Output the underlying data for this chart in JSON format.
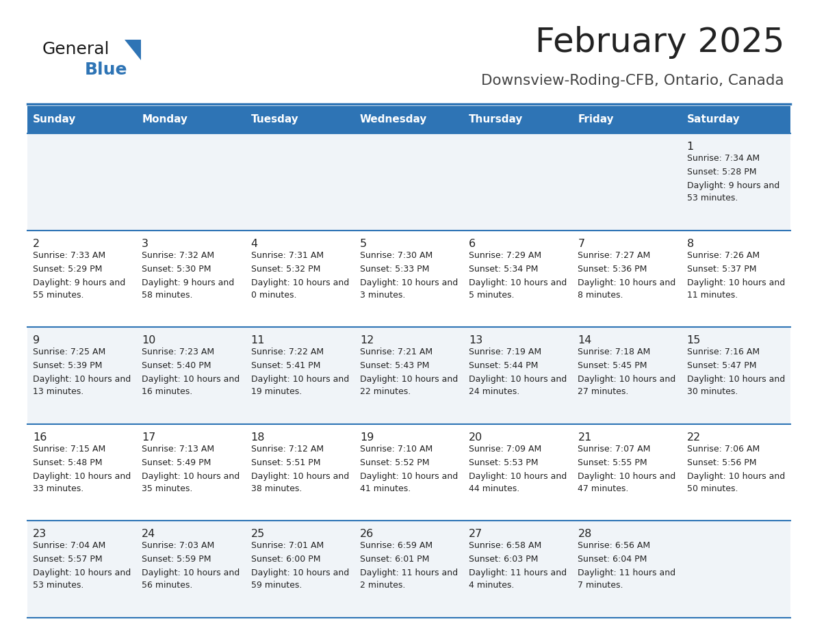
{
  "title": "February 2025",
  "subtitle": "Downsview-Roding-CFB, Ontario, Canada",
  "days_of_week": [
    "Sunday",
    "Monday",
    "Tuesday",
    "Wednesday",
    "Thursday",
    "Friday",
    "Saturday"
  ],
  "header_bg": "#2E74B5",
  "header_text": "#FFFFFF",
  "row_bg_even": "#FFFFFF",
  "row_bg_odd": "#F0F4F8",
  "separator_color": "#2E74B5",
  "text_color": "#222222",
  "title_color": "#222222",
  "subtitle_color": "#444444",
  "logo_general_color": "#1a1a1a",
  "logo_blue_color": "#2E74B5",
  "calendar_data": [
    [
      null,
      null,
      null,
      null,
      null,
      null,
      {
        "day": 1,
        "sunrise": "7:34 AM",
        "sunset": "5:28 PM",
        "daylight": "9 hours and 53 minutes."
      }
    ],
    [
      {
        "day": 2,
        "sunrise": "7:33 AM",
        "sunset": "5:29 PM",
        "daylight": "9 hours and 55 minutes."
      },
      {
        "day": 3,
        "sunrise": "7:32 AM",
        "sunset": "5:30 PM",
        "daylight": "9 hours and 58 minutes."
      },
      {
        "day": 4,
        "sunrise": "7:31 AM",
        "sunset": "5:32 PM",
        "daylight": "10 hours and 0 minutes."
      },
      {
        "day": 5,
        "sunrise": "7:30 AM",
        "sunset": "5:33 PM",
        "daylight": "10 hours and 3 minutes."
      },
      {
        "day": 6,
        "sunrise": "7:29 AM",
        "sunset": "5:34 PM",
        "daylight": "10 hours and 5 minutes."
      },
      {
        "day": 7,
        "sunrise": "7:27 AM",
        "sunset": "5:36 PM",
        "daylight": "10 hours and 8 minutes."
      },
      {
        "day": 8,
        "sunrise": "7:26 AM",
        "sunset": "5:37 PM",
        "daylight": "10 hours and 11 minutes."
      }
    ],
    [
      {
        "day": 9,
        "sunrise": "7:25 AM",
        "sunset": "5:39 PM",
        "daylight": "10 hours and 13 minutes."
      },
      {
        "day": 10,
        "sunrise": "7:23 AM",
        "sunset": "5:40 PM",
        "daylight": "10 hours and 16 minutes."
      },
      {
        "day": 11,
        "sunrise": "7:22 AM",
        "sunset": "5:41 PM",
        "daylight": "10 hours and 19 minutes."
      },
      {
        "day": 12,
        "sunrise": "7:21 AM",
        "sunset": "5:43 PM",
        "daylight": "10 hours and 22 minutes."
      },
      {
        "day": 13,
        "sunrise": "7:19 AM",
        "sunset": "5:44 PM",
        "daylight": "10 hours and 24 minutes."
      },
      {
        "day": 14,
        "sunrise": "7:18 AM",
        "sunset": "5:45 PM",
        "daylight": "10 hours and 27 minutes."
      },
      {
        "day": 15,
        "sunrise": "7:16 AM",
        "sunset": "5:47 PM",
        "daylight": "10 hours and 30 minutes."
      }
    ],
    [
      {
        "day": 16,
        "sunrise": "7:15 AM",
        "sunset": "5:48 PM",
        "daylight": "10 hours and 33 minutes."
      },
      {
        "day": 17,
        "sunrise": "7:13 AM",
        "sunset": "5:49 PM",
        "daylight": "10 hours and 35 minutes."
      },
      {
        "day": 18,
        "sunrise": "7:12 AM",
        "sunset": "5:51 PM",
        "daylight": "10 hours and 38 minutes."
      },
      {
        "day": 19,
        "sunrise": "7:10 AM",
        "sunset": "5:52 PM",
        "daylight": "10 hours and 41 minutes."
      },
      {
        "day": 20,
        "sunrise": "7:09 AM",
        "sunset": "5:53 PM",
        "daylight": "10 hours and 44 minutes."
      },
      {
        "day": 21,
        "sunrise": "7:07 AM",
        "sunset": "5:55 PM",
        "daylight": "10 hours and 47 minutes."
      },
      {
        "day": 22,
        "sunrise": "7:06 AM",
        "sunset": "5:56 PM",
        "daylight": "10 hours and 50 minutes."
      }
    ],
    [
      {
        "day": 23,
        "sunrise": "7:04 AM",
        "sunset": "5:57 PM",
        "daylight": "10 hours and 53 minutes."
      },
      {
        "day": 24,
        "sunrise": "7:03 AM",
        "sunset": "5:59 PM",
        "daylight": "10 hours and 56 minutes."
      },
      {
        "day": 25,
        "sunrise": "7:01 AM",
        "sunset": "6:00 PM",
        "daylight": "10 hours and 59 minutes."
      },
      {
        "day": 26,
        "sunrise": "6:59 AM",
        "sunset": "6:01 PM",
        "daylight": "11 hours and 2 minutes."
      },
      {
        "day": 27,
        "sunrise": "6:58 AM",
        "sunset": "6:03 PM",
        "daylight": "11 hours and 4 minutes."
      },
      {
        "day": 28,
        "sunrise": "6:56 AM",
        "sunset": "6:04 PM",
        "daylight": "11 hours and 7 minutes."
      },
      null
    ]
  ]
}
